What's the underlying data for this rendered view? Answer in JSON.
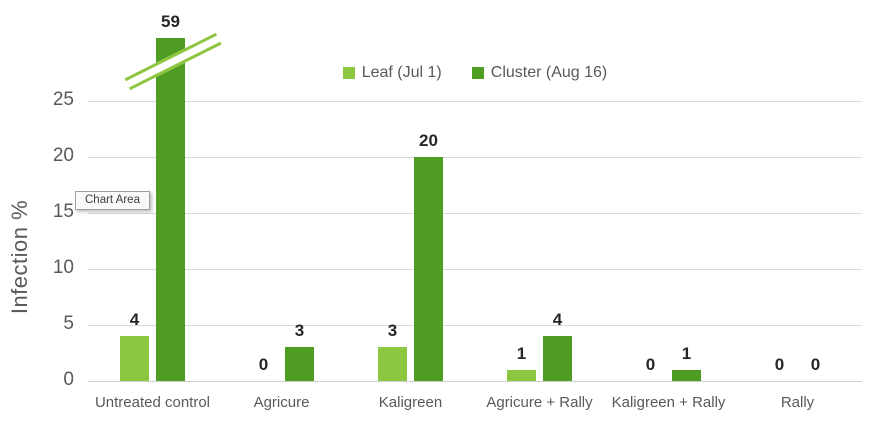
{
  "chart_data": {
    "type": "bar",
    "title": "",
    "ylabel": "Infection %",
    "xlabel": "",
    "categories": [
      "Untreated control",
      "Agricure",
      "Kaligreen",
      "Agricure + Rally",
      "Kaligreen + Rally",
      "Rally"
    ],
    "series": [
      {
        "name": "Leaf (Jul 1)",
        "color": "#8dc63f",
        "values": [
          4,
          0,
          3,
          1,
          0,
          0
        ]
      },
      {
        "name": "Cluster (Aug 16)",
        "color": "#4f9e23",
        "values": [
          59,
          3,
          20,
          4,
          1,
          0
        ]
      }
    ],
    "y_ticks": [
      0,
      5,
      10,
      15,
      20,
      25
    ],
    "ylim": [
      0,
      25
    ],
    "grid": true,
    "legend_position": "top",
    "data_labels": true,
    "axis_break": {
      "category": "Untreated control",
      "series": "Cluster (Aug 16)",
      "shown_value": "59",
      "note": "bar truncated above axis max with double break lines"
    }
  },
  "tooltip": {
    "label": "Chart Area"
  },
  "colors": {
    "leaf": "#8dc63f",
    "cluster": "#4f9e23",
    "gridline": "#d9d9d9",
    "axis_text": "#595959",
    "data_label_text": "#262626",
    "background": "#ffffff"
  }
}
